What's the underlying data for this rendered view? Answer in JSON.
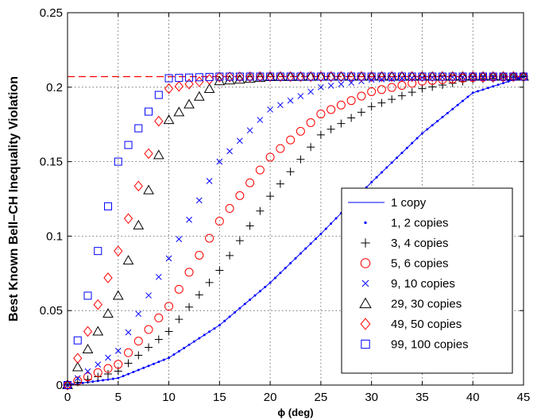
{
  "chart_data": {
    "type": "line",
    "xlabel": "ϕ (deg)",
    "ylabel": "Best Known Bell–CH Inequality Violation",
    "xlim": [
      0,
      45
    ],
    "ylim": [
      0,
      0.25
    ],
    "xticks": [
      0,
      5,
      10,
      15,
      20,
      25,
      30,
      35,
      40,
      45
    ],
    "yticks": [
      0,
      0.05,
      0.1,
      0.15,
      0.2,
      0.25
    ],
    "xtick_labels": [
      "0",
      "5",
      "10",
      "15",
      "20",
      "25",
      "30",
      "35",
      "40",
      "45"
    ],
    "ytick_labels": [
      "0",
      "0.05",
      "0.1",
      "0.15",
      "0.2",
      "0.25"
    ],
    "grid": true,
    "legend_position": "lower-right",
    "reference_line": {
      "y": 0.2071,
      "style": "dashed",
      "color": "#ff0000"
    },
    "series": [
      {
        "name": "1 copy",
        "marker": "line",
        "color": "#0000ff",
        "n": 1,
        "step": 0.25,
        "x": [
          0,
          5,
          10,
          15,
          20,
          25,
          30,
          35,
          40,
          45
        ],
        "y": [
          0,
          0.0047,
          0.0183,
          0.0402,
          0.0687,
          0.1015,
          0.1362,
          0.169,
          0.1962,
          0.2071
        ]
      },
      {
        "name": "1, 2 copies",
        "marker": "dot",
        "color": "#0000ff",
        "n": 2,
        "step": 0.5,
        "x": [
          0,
          5,
          10,
          15,
          20,
          25,
          30,
          35,
          40,
          45
        ],
        "y": [
          0,
          0.0047,
          0.0183,
          0.0402,
          0.0687,
          0.1015,
          0.1362,
          0.169,
          0.1962,
          0.2071
        ]
      },
      {
        "name": "3, 4 copies",
        "marker": "plus",
        "color": "#000000",
        "n": 4,
        "step": 1,
        "x": [
          0,
          5,
          10,
          15,
          20,
          25,
          30,
          35,
          40,
          45
        ],
        "y": [
          0,
          0.0093,
          0.036,
          0.077,
          0.1268,
          0.168,
          0.187,
          0.199,
          0.205,
          0.2071
        ]
      },
      {
        "name": "5, 6 copies",
        "marker": "circle",
        "color": "#ff0000",
        "n": 6,
        "step": 1,
        "x": [
          0,
          5,
          10,
          15,
          20,
          25,
          30,
          35,
          40,
          45
        ],
        "y": [
          0,
          0.0139,
          0.0529,
          0.11,
          0.153,
          0.182,
          0.197,
          0.204,
          0.2065,
          0.2071
        ]
      },
      {
        "name": "9, 10 copies",
        "marker": "x",
        "color": "#0000ff",
        "n": 10,
        "step": 1,
        "x": [
          0,
          5,
          10,
          15,
          20,
          25,
          30,
          35,
          40,
          45
        ],
        "y": [
          0,
          0.023,
          0.085,
          0.15,
          0.185,
          0.2,
          0.205,
          0.2065,
          0.207,
          0.2071
        ]
      },
      {
        "name": "29, 30 copies",
        "marker": "triangle",
        "color": "#000000",
        "n": 30,
        "step": 1,
        "x": [
          0,
          5,
          10,
          15,
          20,
          25,
          30,
          35,
          40,
          45
        ],
        "y": [
          0,
          0.06,
          0.178,
          0.204,
          0.2068,
          0.2071,
          0.2071,
          0.2071,
          0.2071,
          0.2071
        ]
      },
      {
        "name": "49, 50 copies",
        "marker": "diamond",
        "color": "#ff0000",
        "n": 50,
        "step": 1,
        "x": [
          0,
          5,
          10,
          15,
          20,
          25,
          30,
          35,
          40,
          45
        ],
        "y": [
          0,
          0.09,
          0.199,
          0.2068,
          0.2071,
          0.2071,
          0.2071,
          0.2071,
          0.2071,
          0.2071
        ]
      },
      {
        "name": "99, 100 copies",
        "marker": "square",
        "color": "#0000ff",
        "n": 100,
        "step": 1,
        "x": [
          0,
          5,
          10,
          15,
          20,
          25,
          30,
          35,
          40,
          45
        ],
        "y": [
          0,
          0.15,
          0.206,
          0.2071,
          0.2071,
          0.2071,
          0.2071,
          0.2071,
          0.2071,
          0.2071
        ]
      }
    ]
  }
}
